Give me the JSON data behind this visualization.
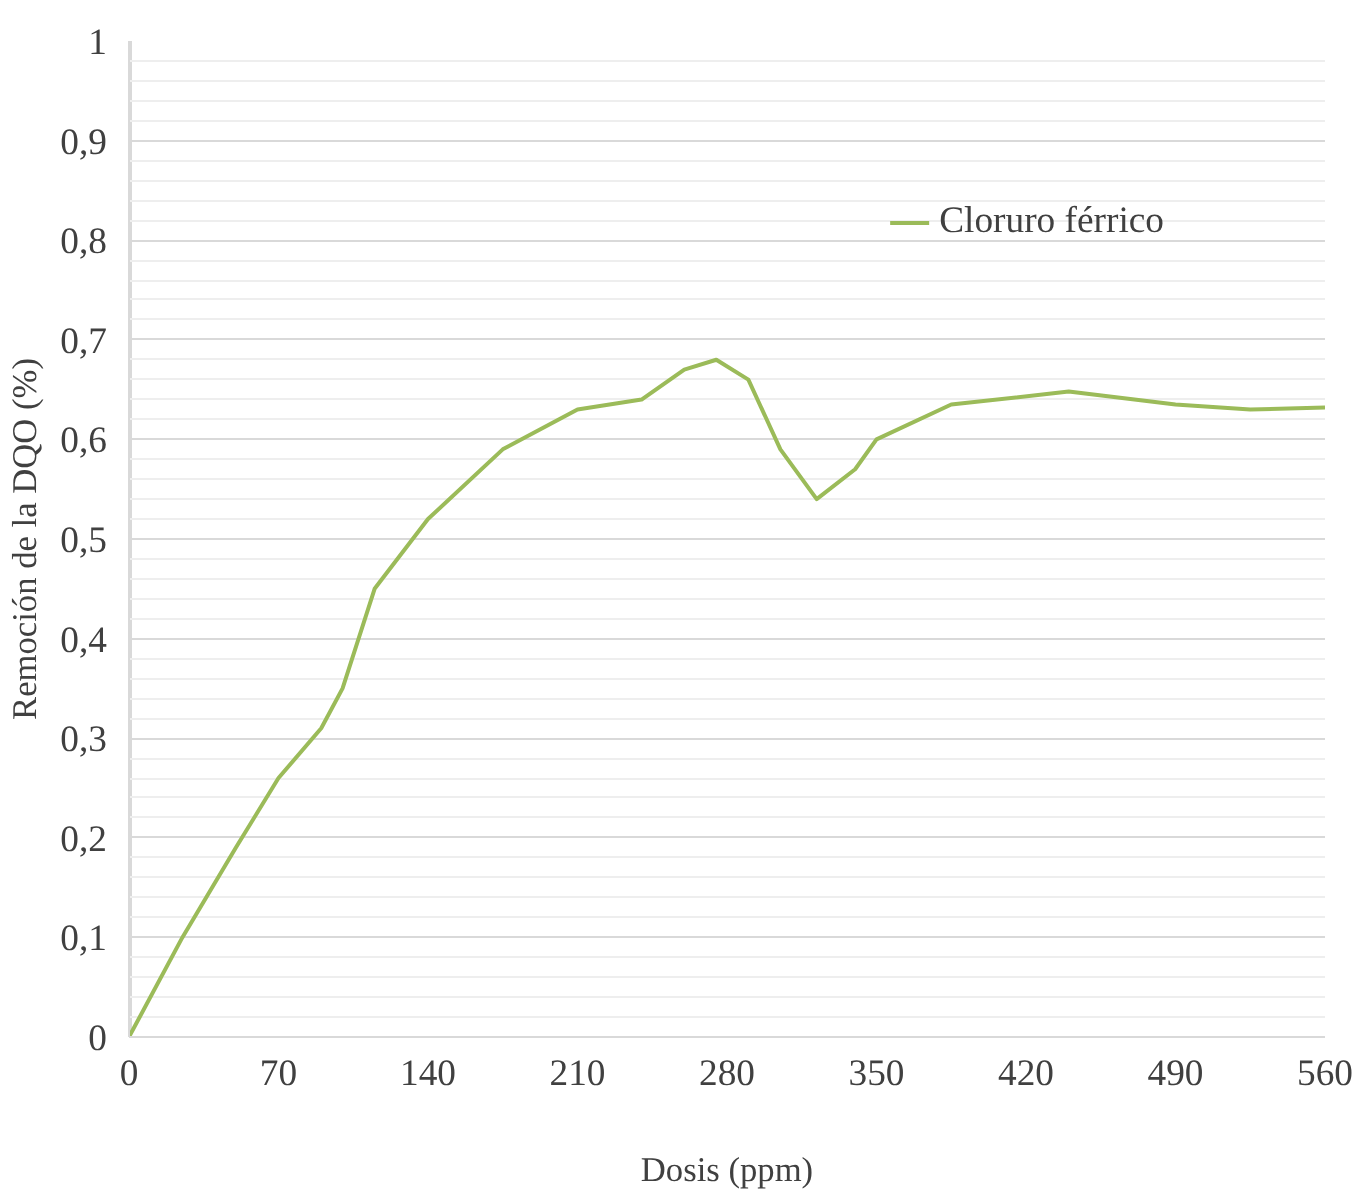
{
  "chart_data": {
    "type": "line",
    "xlabel": "Dosis (ppm)",
    "ylabel": "Remoción de la DQO (%)",
    "x": [
      0,
      25,
      50,
      70,
      90,
      100,
      115,
      140,
      175,
      210,
      240,
      260,
      275,
      290,
      305,
      322,
      340,
      350,
      385,
      440,
      490,
      525,
      560
    ],
    "series": [
      {
        "name": "Cloruro férrico",
        "color": "#9bbb59",
        "values": [
          0,
          0.1,
          0.19,
          0.26,
          0.31,
          0.35,
          0.45,
          0.52,
          0.59,
          0.63,
          0.64,
          0.67,
          0.68,
          0.66,
          0.59,
          0.54,
          0.57,
          0.6,
          0.635,
          0.648,
          0.635,
          0.63,
          0.632
        ]
      }
    ],
    "xlim": [
      0,
      560
    ],
    "xticks": [
      0,
      70,
      140,
      210,
      280,
      350,
      420,
      490,
      560
    ],
    "ylim": [
      0,
      1
    ],
    "yticks": [
      0,
      {
        "value": 0.1,
        "label": "0,1"
      },
      {
        "value": 0.2,
        "label": "0,2"
      },
      {
        "value": 0.3,
        "label": "0,3"
      },
      {
        "value": 0.4,
        "label": "0,4"
      },
      {
        "value": 0.5,
        "label": "0,5"
      },
      {
        "value": 0.6,
        "label": "0,6"
      },
      {
        "value": 0.7,
        "label": "0,7"
      },
      {
        "value": 0.8,
        "label": "0,8"
      },
      {
        "value": 0.9,
        "label": "0,9"
      },
      1
    ],
    "grid": true,
    "legend": "top right"
  }
}
